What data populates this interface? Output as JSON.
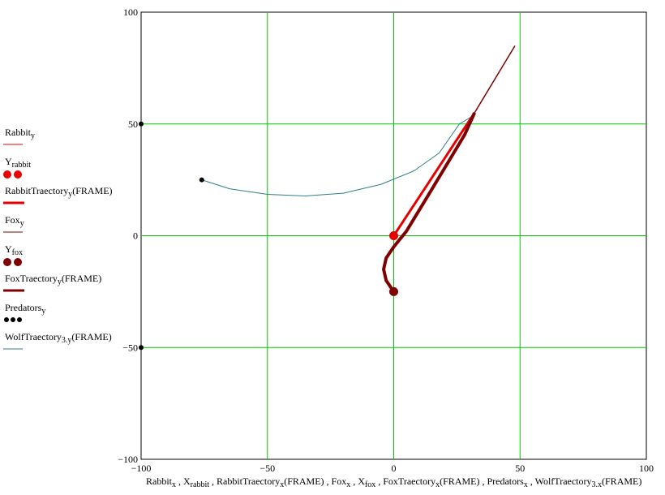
{
  "chart_data": {
    "type": "line",
    "xlim": [
      -100,
      100
    ],
    "ylim": [
      -100,
      100
    ],
    "grid": true,
    "legend_placement": "left",
    "x_ticks": [
      -100,
      -50,
      0,
      50,
      100
    ],
    "y_ticks": [
      -100,
      -50,
      0,
      50,
      100
    ],
    "colors": {
      "grid": "#00c800",
      "rabbit": "#e60000",
      "fox": "#7f0000",
      "wolf": "#2f7f86",
      "predator": "#000000"
    },
    "series": [
      {
        "name": "RabbitTraectory(FRAME)",
        "role": "rabbit-path",
        "x": [
          0,
          32,
          48
        ],
        "y": [
          0,
          55,
          85
        ]
      },
      {
        "name": "Rabbit point",
        "role": "rabbit-point",
        "x": [
          0
        ],
        "y": [
          0
        ]
      },
      {
        "name": "FoxTraectory(FRAME)",
        "role": "fox-path",
        "x": [
          0,
          -3,
          -4,
          -3,
          0,
          5,
          12,
          20,
          28,
          32
        ],
        "y": [
          -25,
          -20,
          -15,
          -10,
          -5,
          2,
          15,
          30,
          45,
          55
        ]
      },
      {
        "name": "Fox point",
        "role": "fox-point",
        "x": [
          0
        ],
        "y": [
          -25
        ]
      },
      {
        "name": "WolfTraectory3(FRAME)",
        "role": "wolf-path",
        "x": [
          -76,
          -65,
          -50,
          -35,
          -20,
          -5,
          8,
          18,
          26,
          32
        ],
        "y": [
          25,
          21,
          18.5,
          17.8,
          19,
          23,
          29,
          37,
          50,
          54
        ]
      },
      {
        "name": "Predators",
        "role": "predators",
        "x": [
          -76,
          -100,
          -100
        ],
        "y": [
          25,
          50,
          -50
        ]
      }
    ]
  },
  "legend": {
    "rabbit_y": {
      "base": "Rabbit",
      "sub": "y",
      "tail": ""
    },
    "y_rabbit": {
      "base": "Y",
      "sub": "rabbit",
      "tail": ""
    },
    "rabbit_traectory": {
      "base": "RabbitTraectory",
      "sub": "y",
      "tail": "(FRAME)"
    },
    "fox_y": {
      "base": "Fox",
      "sub": "y",
      "tail": ""
    },
    "y_fox": {
      "base": "Y",
      "sub": "fox",
      "tail": ""
    },
    "fox_traectory": {
      "base": "FoxTraectory",
      "sub": "y",
      "tail": "(FRAME)"
    },
    "predators_y": {
      "base": "Predators",
      "sub": "y",
      "tail": ""
    },
    "wolf_traectory": {
      "base": "WolfTraectory",
      "sub": "3.y",
      "tail": "(FRAME)"
    }
  },
  "xlabel": [
    {
      "t": "Rabbit",
      "s": "x"
    },
    {
      "t": " , X",
      "s": "rabbit"
    },
    {
      "t": " , RabbitTraectory",
      "s": "x"
    },
    {
      "t": "(FRAME) , Fox",
      "s": "x"
    },
    {
      "t": " , X",
      "s": "fox"
    },
    {
      "t": " , FoxTraectory",
      "s": "x"
    },
    {
      "t": "(FRAME) , Predators",
      "s": "x"
    },
    {
      "t": " , WolfTraectory",
      "s": "3.x"
    },
    {
      "t": "(FRAME)",
      "s": ""
    }
  ]
}
